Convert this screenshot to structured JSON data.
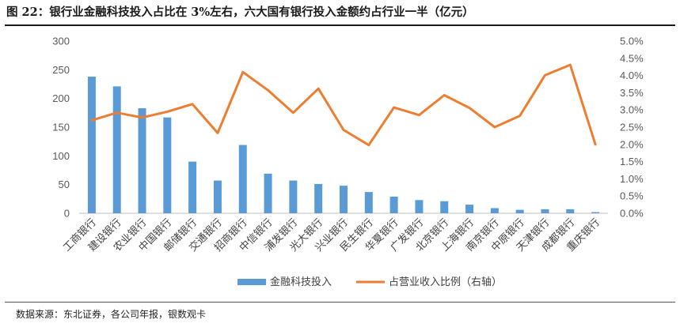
{
  "figure": {
    "title": "图 22：银行业金融科技投入占比在 3%左右，六大国有银行投入金额约占行业一半（亿元）",
    "source": "数据来源：东北证券，各公司年报，银数观卡"
  },
  "chart_data": {
    "type": "bar+line",
    "categories": [
      "工商银行",
      "建设银行",
      "农业银行",
      "中国银行",
      "邮储银行",
      "交通银行",
      "招商银行",
      "中信银行",
      "浦发银行",
      "光大银行",
      "兴业银行",
      "民生银行",
      "华夏银行",
      "广发银行",
      "北京银行",
      "上海银行",
      "南京银行",
      "中原银行",
      "天津银行",
      "成都银行",
      "重庆银行"
    ],
    "series": [
      {
        "name": "金融科技投入",
        "kind": "bar",
        "axis": "left",
        "color": "#5B9BD5",
        "values": [
          238,
          221,
          183,
          167,
          90,
          57,
          119,
          69,
          57,
          51,
          48,
          37,
          29,
          23,
          21,
          15,
          9,
          6,
          7,
          7,
          2
        ]
      },
      {
        "name": "占营业收入比例（右轴）",
        "kind": "line",
        "axis": "right",
        "color": "#ED7D31",
        "values": [
          0.027,
          0.0292,
          0.0278,
          0.0295,
          0.0317,
          0.0233,
          0.041,
          0.0357,
          0.0292,
          0.0362,
          0.0242,
          0.0198,
          0.0307,
          0.0285,
          0.0343,
          0.0306,
          0.025,
          0.0283,
          0.0401,
          0.0431,
          0.02
        ]
      }
    ],
    "y_left": {
      "min": 0,
      "max": 300,
      "ticks": [
        0,
        50,
        100,
        150,
        200,
        250,
        300
      ]
    },
    "y_right": {
      "min": 0,
      "max": 0.05,
      "ticks": [
        "0.0%",
        "0.5%",
        "1.0%",
        "1.5%",
        "2.0%",
        "2.5%",
        "3.0%",
        "3.5%",
        "4.0%",
        "4.5%",
        "5.0%"
      ]
    },
    "grid": false,
    "legend_position": "bottom-center"
  }
}
